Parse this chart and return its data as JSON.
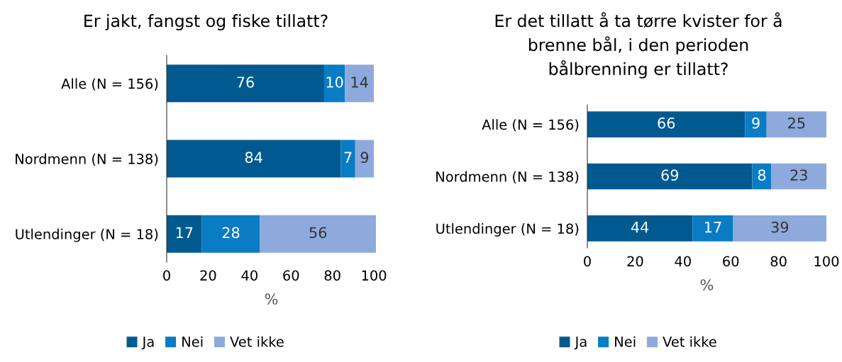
{
  "chart_data": [
    {
      "type": "bar",
      "orientation": "horizontal",
      "stacked": true,
      "title": "Er jakt, fangst og fiske tillatt?",
      "xlabel": "%",
      "categories": [
        "Alle (N = 156)",
        "Nordmenn (N = 138)",
        "Utlendinger (N = 18)"
      ],
      "series": [
        {
          "name": "Ja",
          "color": "#005a8f",
          "values": [
            76,
            84,
            17
          ]
        },
        {
          "name": "Nei",
          "color": "#0a7cc4",
          "values": [
            10,
            7,
            28
          ]
        },
        {
          "name": "Vet ikke",
          "color": "#8eaadd",
          "values": [
            14,
            9,
            56
          ]
        }
      ],
      "xlim": [
        0,
        101
      ],
      "xticks": [
        0,
        20,
        40,
        60,
        80,
        100
      ],
      "data_labels": true,
      "legend": "bottom",
      "grid": false
    },
    {
      "type": "bar",
      "orientation": "horizontal",
      "stacked": true,
      "title": "Er det tillatt å ta tørre kvister for å brenne bål, i den perioden bålbrenning er tillatt?",
      "xlabel": "%",
      "categories": [
        "Alle (N = 156)",
        "Nordmenn (N = 138)",
        "Utlendinger (N = 18)"
      ],
      "series": [
        {
          "name": "Ja",
          "color": "#005a8f",
          "values": [
            66,
            69,
            44
          ]
        },
        {
          "name": "Nei",
          "color": "#0a7cc4",
          "values": [
            9,
            8,
            17
          ]
        },
        {
          "name": "Vet ikke",
          "color": "#8eaadd",
          "values": [
            25,
            23,
            39
          ]
        }
      ],
      "xlim": [
        0,
        100
      ],
      "xticks": [
        0,
        20,
        40,
        60,
        80,
        100
      ],
      "data_labels": true,
      "legend": "bottom",
      "grid": false
    }
  ]
}
